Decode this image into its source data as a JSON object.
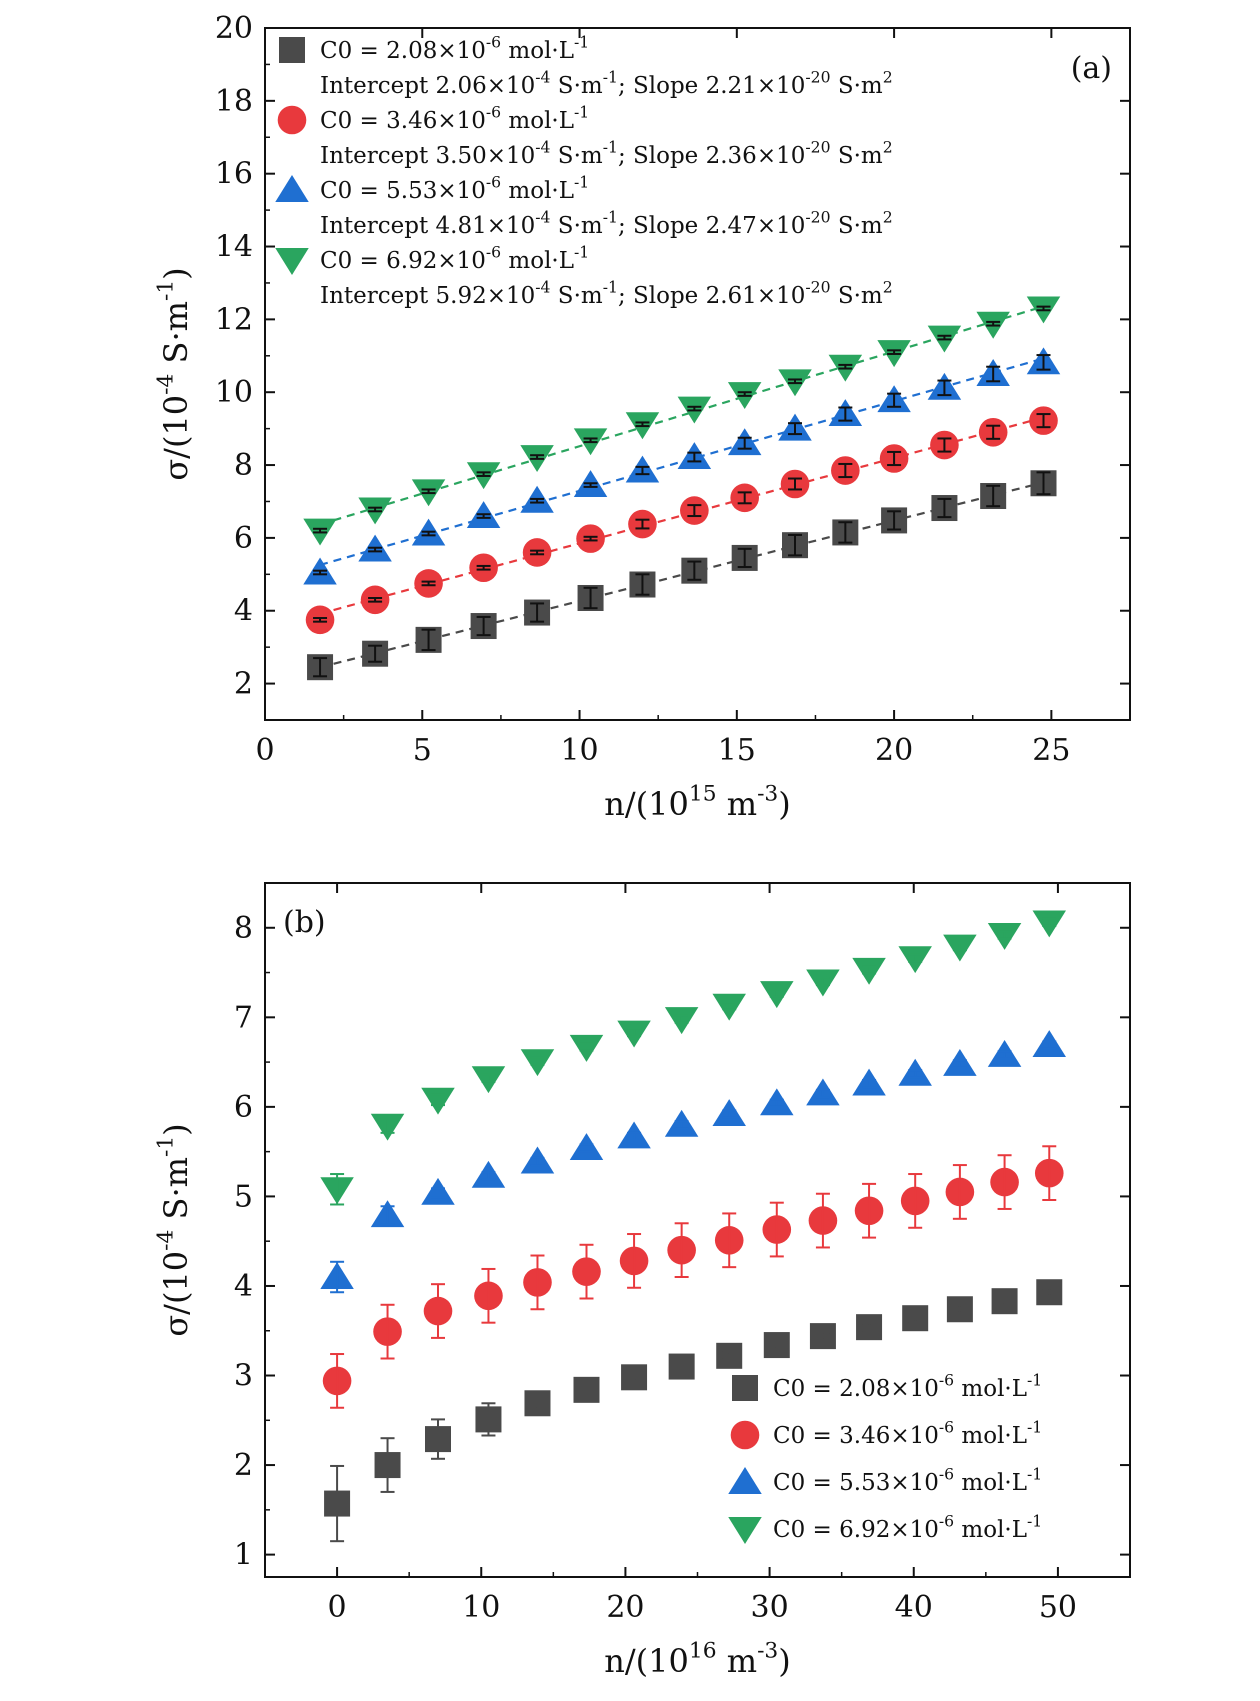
{
  "chart_data": [
    {
      "type": "scatter",
      "panel_label": "(a)",
      "xlabel": "n/(10^15 m^-3)",
      "ylabel": "σ/(10^-4 S·m^-1)",
      "xlim": [
        0,
        27.5
      ],
      "ylim": [
        1,
        20
      ],
      "x_ticks": [
        0,
        5,
        10,
        15,
        20,
        25
      ],
      "y_ticks": [
        2,
        4,
        6,
        8,
        10,
        12,
        14,
        16,
        18,
        20
      ],
      "legend_position": "top-left",
      "fit_lines": true,
      "x": [
        1.75,
        3.5,
        5.2,
        6.95,
        8.65,
        10.35,
        12.0,
        13.65,
        15.25,
        16.85,
        18.45,
        20.0,
        21.6,
        23.15,
        24.75
      ],
      "series": [
        {
          "name": "C0 = 2.08×10^-6 mol·L^-1",
          "fit_text": "Intercept 2.06×10^-4 S·m^-1; Slope 2.21×10^-20 S·m^2",
          "marker": "square",
          "color": "#4a4a4a",
          "values": [
            2.45,
            2.82,
            3.2,
            3.58,
            3.95,
            4.35,
            4.72,
            5.1,
            5.45,
            5.8,
            6.15,
            6.48,
            6.82,
            7.15,
            7.5
          ],
          "errors": [
            0.25,
            0.22,
            0.28,
            0.25,
            0.25,
            0.28,
            0.28,
            0.25,
            0.25,
            0.28,
            0.28,
            0.25,
            0.25,
            0.28,
            0.3
          ]
        },
        {
          "name": "C0 = 3.46×10^-6 mol·L^-1",
          "fit_text": "Intercept 3.50×10^-4 S·m^-1; Slope 2.36×10^-20 S·m^2",
          "marker": "circle",
          "color": "#e8393d",
          "values": [
            3.75,
            4.3,
            4.75,
            5.18,
            5.6,
            5.98,
            6.38,
            6.75,
            7.1,
            7.48,
            7.85,
            8.18,
            8.55,
            8.9,
            9.22
          ],
          "errors": [
            0.05,
            0.05,
            0.05,
            0.05,
            0.05,
            0.05,
            0.12,
            0.15,
            0.15,
            0.15,
            0.18,
            0.18,
            0.18,
            0.18,
            0.18
          ]
        },
        {
          "name": "C0 = 5.53×10^-6 mol·L^-1",
          "fit_text": "Intercept 4.81×10^-4 S·m^-1; Slope 2.47×10^-20 S·m^2",
          "marker": "triangle-up",
          "color": "#1f6fd1",
          "values": [
            5.05,
            5.68,
            6.12,
            6.6,
            7.02,
            7.45,
            7.85,
            8.22,
            8.6,
            9.0,
            9.4,
            9.78,
            10.12,
            10.5,
            10.82
          ],
          "errors": [
            0.05,
            0.05,
            0.05,
            0.05,
            0.05,
            0.05,
            0.1,
            0.12,
            0.15,
            0.15,
            0.18,
            0.18,
            0.2,
            0.2,
            0.2
          ]
        },
        {
          "name": "C0 = 6.92×10^-6 mol·L^-1",
          "fit_text": "Intercept 5.92×10^-4 S·m^-1; Slope 2.61×10^-20 S·m^2",
          "marker": "triangle-down",
          "color": "#2aa55f",
          "values": [
            6.2,
            6.78,
            7.28,
            7.75,
            8.22,
            8.68,
            9.12,
            9.55,
            9.95,
            10.3,
            10.7,
            11.1,
            11.5,
            11.88,
            12.3
          ],
          "errors": [
            0.05,
            0.05,
            0.05,
            0.05,
            0.05,
            0.05,
            0.05,
            0.05,
            0.05,
            0.05,
            0.05,
            0.05,
            0.05,
            0.05,
            0.05
          ]
        }
      ]
    },
    {
      "type": "scatter",
      "panel_label": "(b)",
      "xlabel": "n/(10^16 m^-3)",
      "ylabel": "σ/(10^-4 S·m^-1)",
      "xlim": [
        -5,
        55
      ],
      "ylim": [
        0.75,
        8.5
      ],
      "x_ticks": [
        0,
        10,
        20,
        30,
        40,
        50
      ],
      "y_ticks": [
        1,
        2,
        3,
        4,
        5,
        6,
        7,
        8
      ],
      "legend_position": "bottom-right",
      "fit_lines": false,
      "x": [
        0,
        3.5,
        7.0,
        10.5,
        13.9,
        17.3,
        20.6,
        23.9,
        27.2,
        30.5,
        33.7,
        36.9,
        40.1,
        43.2,
        46.3,
        49.4
      ],
      "series": [
        {
          "name": "C0 = 2.08×10^-6 mol·L^-1",
          "marker": "square",
          "color": "#4a4a4a",
          "values": [
            1.57,
            2.0,
            2.29,
            2.51,
            2.69,
            2.84,
            2.98,
            3.1,
            3.22,
            3.34,
            3.44,
            3.54,
            3.64,
            3.74,
            3.83,
            3.93
          ],
          "errors": [
            0.42,
            0.3,
            0.22,
            0.18,
            0.06,
            0.06,
            0.04,
            0.04,
            0.04,
            0.04,
            0.04,
            0.04,
            0.04,
            0.04,
            0.04,
            0.04
          ]
        },
        {
          "name": "C0 = 3.46×10^-6 mol·L^-1",
          "marker": "circle",
          "color": "#e8393d",
          "values": [
            2.94,
            3.49,
            3.72,
            3.89,
            4.04,
            4.16,
            4.28,
            4.4,
            4.51,
            4.63,
            4.73,
            4.84,
            4.95,
            5.05,
            5.16,
            5.26
          ],
          "errors": [
            0.3,
            0.3,
            0.3,
            0.3,
            0.3,
            0.3,
            0.3,
            0.3,
            0.3,
            0.3,
            0.3,
            0.3,
            0.3,
            0.3,
            0.3,
            0.3
          ]
        },
        {
          "name": "C0 = 5.53×10^-6 mol·L^-1",
          "marker": "triangle-up",
          "color": "#1f6fd1",
          "values": [
            4.1,
            4.79,
            5.04,
            5.23,
            5.39,
            5.54,
            5.67,
            5.8,
            5.92,
            6.04,
            6.15,
            6.26,
            6.37,
            6.48,
            6.58,
            6.69
          ],
          "errors": [
            0.17,
            0.1,
            0.05,
            0.04,
            0.04,
            0.04,
            0.04,
            0.04,
            0.04,
            0.04,
            0.04,
            0.04,
            0.04,
            0.04,
            0.04,
            0.04
          ]
        },
        {
          "name": "C0 = 6.92×10^-6 mol·L^-1",
          "marker": "triangle-down",
          "color": "#2aa55f",
          "values": [
            5.08,
            5.79,
            6.08,
            6.32,
            6.51,
            6.67,
            6.83,
            6.98,
            7.13,
            7.27,
            7.4,
            7.53,
            7.66,
            7.79,
            7.92,
            8.06
          ],
          "errors": [
            0.17,
            0.08,
            0.06,
            0.04,
            0.04,
            0.04,
            0.04,
            0.04,
            0.04,
            0.04,
            0.04,
            0.04,
            0.04,
            0.04,
            0.04,
            0.04
          ]
        }
      ]
    }
  ]
}
